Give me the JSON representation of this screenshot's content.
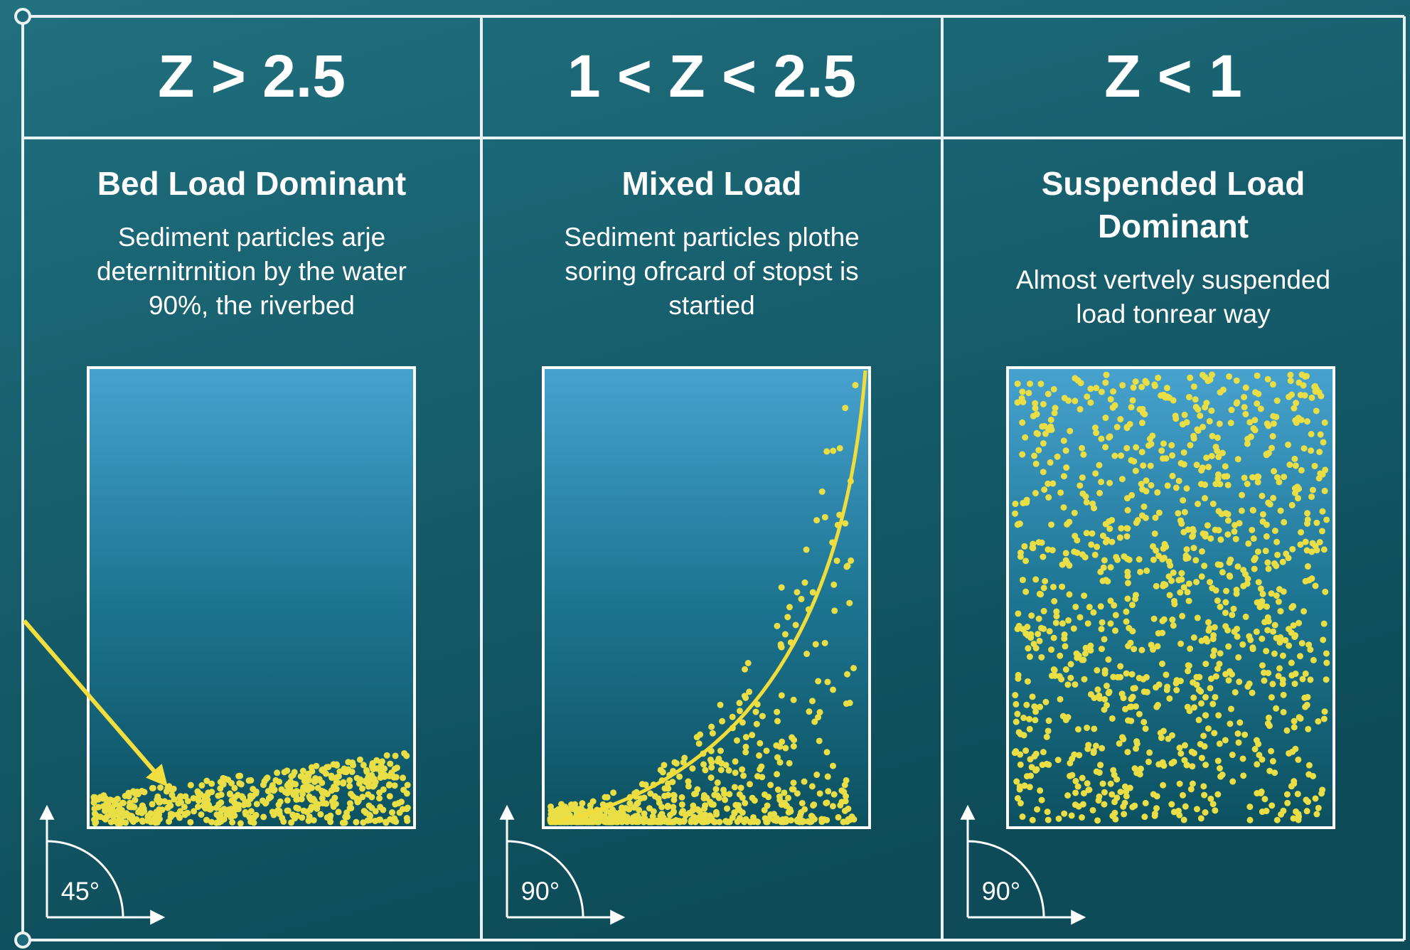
{
  "panels": [
    {
      "header": "Z > 2.5",
      "title": [
        "Bed Load Dominant"
      ],
      "description": [
        "Sediment particles arje",
        "deternitrnition by the water",
        "90%, the riverbed"
      ],
      "angle": "45°"
    },
    {
      "header": "1 < Z < 2.5",
      "title": [
        "Mixed Load"
      ],
      "description": [
        "Sediment particles plothe",
        "soring ofrcard of stopst is",
        "startied"
      ],
      "angle": "90°"
    },
    {
      "header": "Z < 1",
      "title": [
        "Suspended Load",
        "Dominant"
      ],
      "description": [
        "Almost vertvely suspended",
        "load tonrear way"
      ],
      "angle": "90°"
    }
  ]
}
